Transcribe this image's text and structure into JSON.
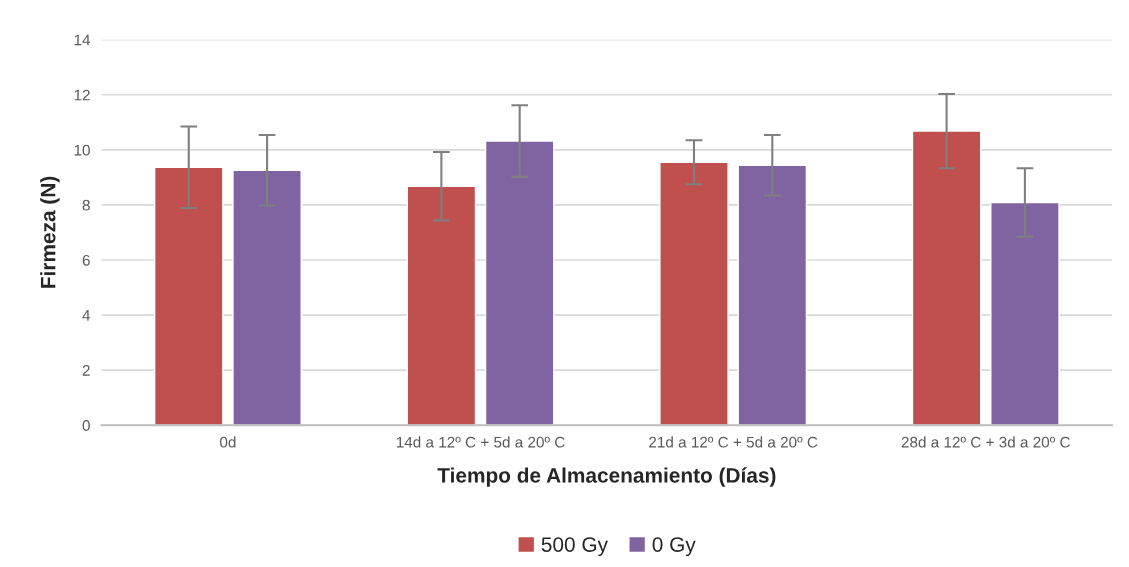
{
  "chart_data": {
    "type": "bar",
    "xlabel": "Tiempo de Almacenamiento (Días)",
    "ylabel": "Firmeza (N)",
    "categories": [
      "0d",
      "14d a 12º C + 5d a 20º C",
      "21d a 12º C + 5d a 20º C",
      "28d a 12º C + 3d a 20º C"
    ],
    "series": [
      {
        "name": "500 Gy",
        "color": "#c0504d",
        "values": [
          9.37,
          8.68,
          9.55,
          10.68
        ],
        "errors": [
          1.48,
          1.24,
          0.8,
          1.35
        ]
      },
      {
        "name": "0 Gy",
        "color": "#8064a2",
        "values": [
          9.26,
          10.32,
          9.44,
          8.09
        ],
        "errors": [
          1.28,
          1.3,
          1.1,
          1.24
        ]
      }
    ],
    "ylim": [
      0,
      14
    ],
    "yticks": [
      0,
      2,
      4,
      6,
      8,
      10,
      12,
      14
    ],
    "grid": "y",
    "legend": "bottom"
  }
}
